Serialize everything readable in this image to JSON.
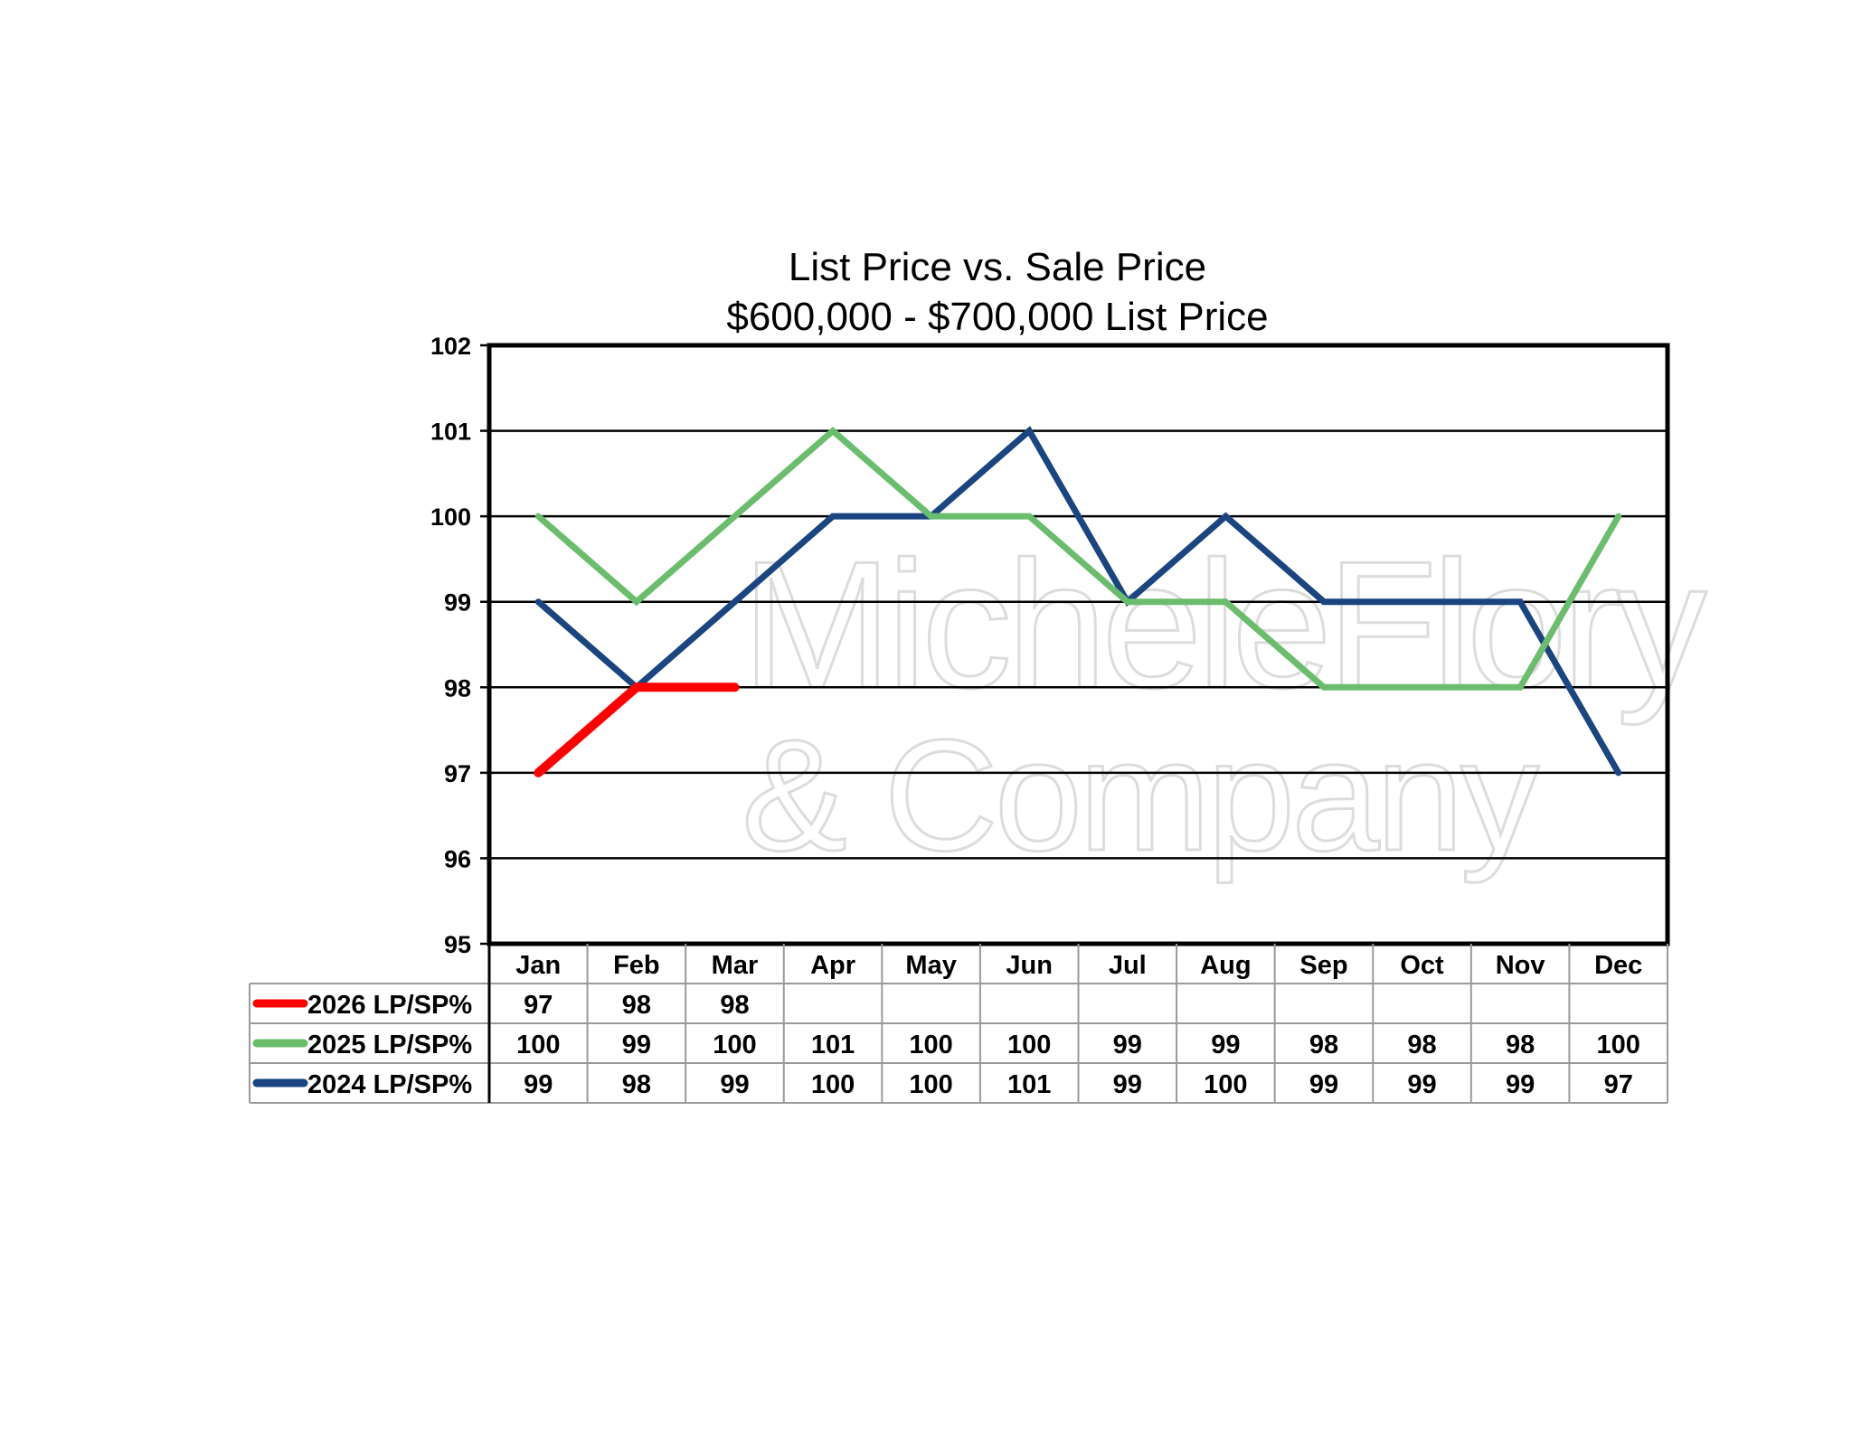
{
  "chart_data": {
    "type": "line",
    "title": "List Price vs. Sale Price",
    "subtitle": "$600,000 - $700,000 List Price",
    "xlabel": "",
    "ylabel": "",
    "ylim": [
      95,
      102
    ],
    "yticks": [
      95,
      96,
      97,
      98,
      99,
      100,
      101,
      102
    ],
    "grid": true,
    "legend": "table-left",
    "categories": [
      "Jan",
      "Feb",
      "Mar",
      "Apr",
      "May",
      "Jun",
      "Jul",
      "Aug",
      "Sep",
      "Oct",
      "Nov",
      "Dec"
    ],
    "series": [
      {
        "name": "2026 LP/SP%",
        "color": "#ff0000",
        "values": [
          97,
          98,
          98,
          null,
          null,
          null,
          null,
          null,
          null,
          null,
          null,
          null
        ]
      },
      {
        "name": "2025 LP/SP%",
        "color": "#6bbd6e",
        "values": [
          100,
          99,
          100,
          101,
          100,
          100,
          99,
          99,
          98,
          98,
          98,
          100
        ]
      },
      {
        "name": "2024 LP/SP%",
        "color": "#1a4580",
        "values": [
          99,
          98,
          99,
          100,
          100,
          101,
          99,
          100,
          99,
          99,
          99,
          97
        ]
      }
    ],
    "watermark": [
      "MicheleFlory",
      "& Company"
    ]
  }
}
